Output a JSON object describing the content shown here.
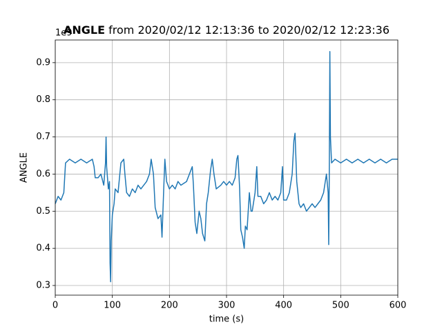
{
  "chart_data": {
    "type": "line",
    "title_bold": "ANGLE",
    "title": " from 2020/02/12 12:13:36 to 2020/02/12 12:23:36",
    "xlabel": "time (s)",
    "ylabel": "ANGLE",
    "offset_label": "1e9",
    "color": "#1f77b4",
    "grid": true,
    "xlim": [
      0,
      600
    ],
    "ylim": [
      0.274,
      0.961
    ],
    "xticks": [
      0,
      100,
      200,
      300,
      400,
      500,
      600
    ],
    "yticks": [
      0.3,
      0.4,
      0.5,
      0.6,
      0.7,
      0.8,
      0.9
    ],
    "x": [
      0,
      5,
      10,
      15,
      18,
      25,
      35,
      45,
      55,
      65,
      68,
      70,
      75,
      80,
      85,
      88,
      89,
      90,
      93,
      95,
      96,
      97,
      98,
      100,
      103,
      105,
      110,
      115,
      120,
      122,
      125,
      130,
      135,
      140,
      145,
      150,
      155,
      160,
      165,
      168,
      172,
      175,
      180,
      185,
      187,
      190,
      192,
      195,
      200,
      205,
      210,
      215,
      220,
      230,
      235,
      240,
      242,
      245,
      248,
      252,
      255,
      258,
      262,
      265,
      268,
      272,
      275,
      278,
      282,
      290,
      295,
      300,
      305,
      310,
      315,
      318,
      320,
      323,
      325,
      328,
      331,
      333,
      336,
      340,
      343,
      345,
      350,
      353,
      355,
      360,
      365,
      370,
      375,
      380,
      385,
      390,
      395,
      398,
      400,
      405,
      410,
      415,
      418,
      420,
      423,
      427,
      430,
      435,
      440,
      445,
      450,
      455,
      460,
      465,
      470,
      475,
      478,
      479,
      480,
      481,
      482,
      484,
      490,
      500,
      510,
      520,
      530,
      540,
      550,
      560,
      570,
      580,
      590,
      600
    ],
    "values": [
      0.52,
      0.54,
      0.53,
      0.55,
      0.63,
      0.64,
      0.63,
      0.64,
      0.63,
      0.64,
      0.62,
      0.59,
      0.59,
      0.6,
      0.57,
      0.63,
      0.7,
      0.62,
      0.56,
      0.58,
      0.36,
      0.31,
      0.42,
      0.49,
      0.52,
      0.56,
      0.55,
      0.63,
      0.64,
      0.6,
      0.55,
      0.54,
      0.56,
      0.55,
      0.57,
      0.56,
      0.57,
      0.58,
      0.6,
      0.64,
      0.6,
      0.51,
      0.48,
      0.49,
      0.43,
      0.56,
      0.64,
      0.58,
      0.56,
      0.57,
      0.56,
      0.58,
      0.57,
      0.58,
      0.6,
      0.62,
      0.57,
      0.47,
      0.44,
      0.5,
      0.48,
      0.44,
      0.42,
      0.52,
      0.55,
      0.61,
      0.64,
      0.6,
      0.56,
      0.57,
      0.58,
      0.57,
      0.58,
      0.57,
      0.59,
      0.64,
      0.65,
      0.56,
      0.45,
      0.43,
      0.4,
      0.46,
      0.45,
      0.55,
      0.5,
      0.5,
      0.55,
      0.62,
      0.54,
      0.54,
      0.52,
      0.53,
      0.55,
      0.53,
      0.54,
      0.53,
      0.55,
      0.62,
      0.53,
      0.53,
      0.55,
      0.6,
      0.69,
      0.71,
      0.58,
      0.52,
      0.51,
      0.52,
      0.5,
      0.51,
      0.52,
      0.51,
      0.52,
      0.53,
      0.55,
      0.6,
      0.55,
      0.41,
      0.6,
      0.93,
      0.7,
      0.63,
      0.64,
      0.63,
      0.64,
      0.63,
      0.64,
      0.63,
      0.64,
      0.63,
      0.64,
      0.63,
      0.64,
      0.64
    ]
  }
}
